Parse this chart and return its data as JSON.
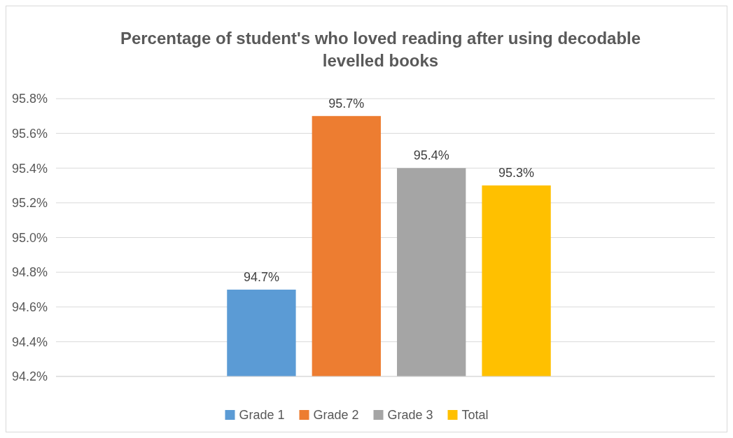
{
  "chart_data": {
    "type": "bar",
    "title": "Percentage of student's who loved reading after using decodable levelled books",
    "categories": [
      null
    ],
    "series": [
      {
        "name": "Grade 1",
        "color": "#5b9bd5",
        "values": [
          94.7
        ]
      },
      {
        "name": "Grade 2",
        "color": "#ed7d31",
        "values": [
          95.7
        ]
      },
      {
        "name": "Grade 3",
        "color": "#a5a5a5",
        "values": [
          95.4
        ]
      },
      {
        "name": "Total",
        "color": "#ffc000",
        "values": [
          95.3
        ]
      }
    ],
    "ylim": [
      94.2,
      95.8
    ],
    "yticks": [
      {
        "value": 94.2,
        "label": "94.2%"
      },
      {
        "value": 94.4,
        "label": "94.4%"
      },
      {
        "value": 94.6,
        "label": "94.6%"
      },
      {
        "value": 94.8,
        "label": "94.8%"
      },
      {
        "value": 95.0,
        "label": "95.0%"
      },
      {
        "value": 95.2,
        "label": "95.2%"
      },
      {
        "value": 95.4,
        "label": "95.4%"
      },
      {
        "value": 95.6,
        "label": "95.6%"
      },
      {
        "value": 95.8,
        "label": "95.8%"
      }
    ],
    "value_labels": [
      [
        "94.7%"
      ],
      [
        "95.7%"
      ],
      [
        "95.4%"
      ],
      [
        "95.3%"
      ]
    ],
    "grid": "y",
    "legend": "bottom"
  }
}
